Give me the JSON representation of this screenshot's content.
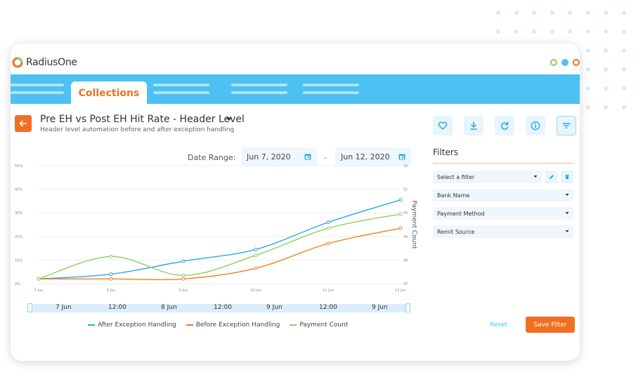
{
  "app": {
    "logo_text": "RadiusOne"
  },
  "tabs": {
    "active_label": "Collections"
  },
  "page": {
    "title": "Pre EH vs Post EH Hit Rate - Header Level",
    "subtitle": "Header level automation before and after exception handling"
  },
  "date_range": {
    "label": "Date Range:",
    "start": "Jun 7, 2020",
    "separator": "-",
    "end": "Jun 12, 2020"
  },
  "toolbar": {
    "icons": [
      "heart-icon",
      "download-icon",
      "refresh-icon",
      "info-icon",
      "filter-icon"
    ]
  },
  "filters": {
    "title": "Filters",
    "select_placeholder": "Select a filter",
    "fields": [
      "Bank Name",
      "Payment Method",
      "Remit Source"
    ],
    "reset_label": "Reset",
    "save_label": "Save Filter"
  },
  "navigator": {
    "labels": [
      "7 Jun",
      "12:00",
      "8 Jun",
      "12:00",
      "9 Jun",
      "12:00",
      "9 Jun"
    ]
  },
  "colors": {
    "accent": "#f26f21",
    "brand": "#4dc1f2",
    "after": "#29a8e8",
    "before": "#f57c1f",
    "payment": "#8cd15a"
  },
  "chart_data": {
    "type": "line",
    "x": [
      "7 Jun",
      "8 Jun",
      "9 Jun",
      "10 Jun",
      "11 Jun",
      "12 Jun"
    ],
    "y_left_ticks": [
      "0%",
      "10%",
      "20%",
      "30%",
      "40%",
      "50%"
    ],
    "y_left_range": [
      0,
      50
    ],
    "y_right_label": "Payment Count",
    "y_right_ticks": [
      "47",
      "48",
      "49",
      "50",
      "51",
      "52"
    ],
    "y_right_range": [
      47,
      52
    ],
    "series": [
      {
        "name": "After Exception Handling",
        "axis": "left",
        "values": [
          2,
          4,
          9.5,
          14.5,
          26,
          35.5
        ]
      },
      {
        "name": "Before Exception Handling",
        "axis": "left",
        "values": [
          2,
          2,
          2,
          6.5,
          17,
          23.5
        ]
      },
      {
        "name": "Payment Count",
        "axis": "right",
        "values": [
          47.2,
          48.15,
          47.35,
          48.2,
          49.35,
          49.95
        ]
      }
    ],
    "legend": "bottom",
    "grid": true
  }
}
